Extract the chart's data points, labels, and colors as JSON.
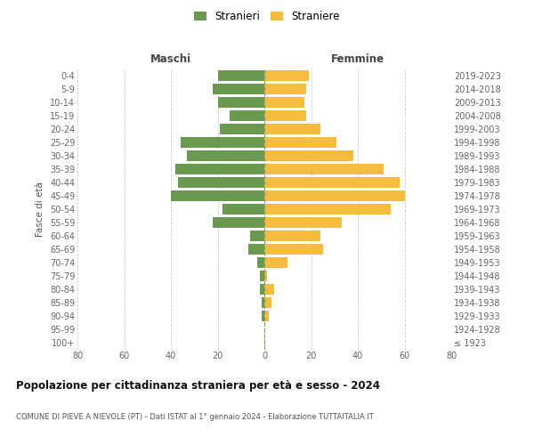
{
  "age_groups": [
    "100+",
    "95-99",
    "90-94",
    "85-89",
    "80-84",
    "75-79",
    "70-74",
    "65-69",
    "60-64",
    "55-59",
    "50-54",
    "45-49",
    "40-44",
    "35-39",
    "30-34",
    "25-29",
    "20-24",
    "15-19",
    "10-14",
    "5-9",
    "0-4"
  ],
  "birth_years": [
    "≤ 1923",
    "1924-1928",
    "1929-1933",
    "1934-1938",
    "1939-1943",
    "1944-1948",
    "1949-1953",
    "1954-1958",
    "1959-1963",
    "1964-1968",
    "1969-1973",
    "1974-1978",
    "1979-1983",
    "1984-1988",
    "1989-1993",
    "1994-1998",
    "1999-2003",
    "2004-2008",
    "2009-2013",
    "2014-2018",
    "2019-2023"
  ],
  "maschi": [
    0,
    0,
    1,
    1,
    2,
    2,
    3,
    7,
    6,
    22,
    18,
    40,
    37,
    38,
    33,
    36,
    19,
    15,
    20,
    22,
    20
  ],
  "femmine": [
    0,
    0,
    2,
    3,
    4,
    1,
    10,
    25,
    24,
    33,
    54,
    60,
    58,
    51,
    38,
    31,
    24,
    18,
    17,
    18,
    19
  ],
  "male_color": "#6a9a50",
  "female_color": "#f5bc42",
  "grid_color": "#cccccc",
  "center_line_color": "#999966",
  "bg_color": "#ffffff",
  "title": "Popolazione per cittadinanza straniera per età e sesso - 2024",
  "subtitle": "COMUNE DI PIEVE A NIEVOLE (PT) - Dati ISTAT al 1° gennaio 2024 - Elaborazione TUTTAITALIA.IT",
  "xlabel_left": "Maschi",
  "xlabel_right": "Femmine",
  "ylabel_left": "Fasce di età",
  "legend_male": "Stranieri",
  "legend_female": "Straniere",
  "xlim": 80,
  "title_fontsize": 8.5,
  "subtitle_fontsize": 6.0,
  "tick_fontsize": 7.0,
  "label_fontsize": 7.5,
  "legend_fontsize": 8.5,
  "header_fontsize": 8.5
}
